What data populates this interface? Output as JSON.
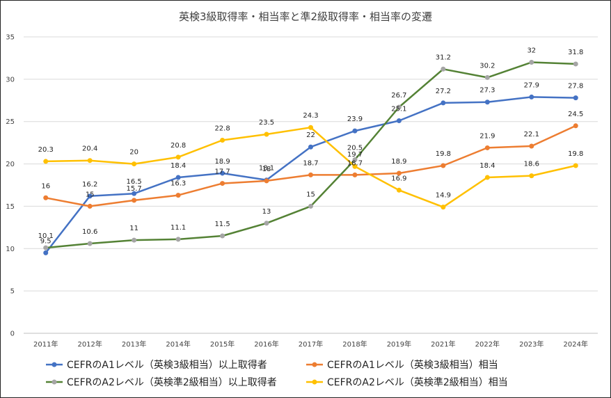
{
  "chart_data": {
    "type": "line",
    "title": "英検3級取得率・相当率と準2級取得率・相当率の変遷",
    "xlabel": "",
    "ylabel": "",
    "ylim": [
      0,
      35
    ],
    "yticks": [
      0,
      5,
      10,
      15,
      20,
      25,
      30,
      35
    ],
    "grid": true,
    "legend_position": "bottom",
    "categories": [
      "2011年",
      "2012年",
      "2013年",
      "2014年",
      "2015年",
      "2016年",
      "2017年",
      "2018年",
      "2019年",
      "2021年",
      "2022年",
      "2023年",
      "2024年"
    ],
    "series": [
      {
        "name": "CEFRのA1レベル（英検3級相当）以上取得者",
        "color": "#4472C4",
        "values": [
          9.5,
          16.2,
          16.5,
          18.4,
          18.9,
          18.1,
          22,
          23.9,
          25.1,
          27.2,
          27.3,
          27.9,
          27.8
        ]
      },
      {
        "name": "CEFRのA1レベル（英検3級相当）相当",
        "color": "#ED7D31",
        "values": [
          16,
          15,
          15.7,
          16.3,
          17.7,
          18,
          18.7,
          18.7,
          18.9,
          19.8,
          21.9,
          22.1,
          24.5
        ]
      },
      {
        "name": "CEFRのA2レベル（英検準2級相当）以上取得者",
        "color": "#548235",
        "values": [
          10.1,
          10.6,
          11,
          11.1,
          11.5,
          13,
          15,
          20.5,
          26.7,
          31.2,
          30.2,
          32,
          31.8
        ]
      },
      {
        "name": "CEFRのA2レベル（英検準2級相当）相当",
        "color": "#FFC000",
        "values": [
          20.3,
          20.4,
          20,
          20.8,
          22.8,
          23.5,
          24.3,
          19.7,
          16.9,
          14.9,
          18.4,
          18.6,
          19.8
        ]
      }
    ]
  }
}
